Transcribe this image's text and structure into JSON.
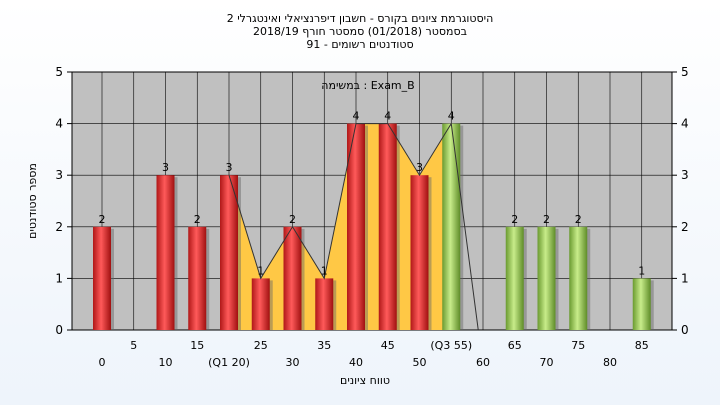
{
  "chart_data": {
    "type": "bar",
    "title_lines": [
      "היסטוגרמת ציונים בקורס - חשבון דיפרנציאלי ואינטגרלי 2",
      "בסמסטר  (01/2018)  סמסטר חורף  2018/19",
      "סטודנטים רשומים - 91"
    ],
    "annotation": "במשימה : Exam_B",
    "xlabel": "טווח ציונים",
    "ylabel": "מספר סטודנטים",
    "ylim": [
      0,
      5
    ],
    "yticks": [
      0,
      1,
      2,
      3,
      4,
      5
    ],
    "grid": true,
    "x_tick_labels": [
      {
        "x": 0,
        "label": "0",
        "row": 0
      },
      {
        "x": 5,
        "label": "5",
        "row": 1
      },
      {
        "x": 10,
        "label": "10",
        "row": 0
      },
      {
        "x": 15,
        "label": "15",
        "row": 1
      },
      {
        "x": 20,
        "label": "(Q1 20)",
        "row": 0
      },
      {
        "x": 25,
        "label": "25",
        "row": 1
      },
      {
        "x": 30,
        "label": "30",
        "row": 0
      },
      {
        "x": 35,
        "label": "35",
        "row": 1
      },
      {
        "x": 40,
        "label": "40",
        "row": 0
      },
      {
        "x": 45,
        "label": "45",
        "row": 1
      },
      {
        "x": 50,
        "label": "50",
        "row": 0
      },
      {
        "x": 55,
        "label": "(Q3 55)",
        "row": 1
      },
      {
        "x": 60,
        "label": "60",
        "row": 0
      },
      {
        "x": 65,
        "label": "65",
        "row": 1
      },
      {
        "x": 70,
        "label": "70",
        "row": 0
      },
      {
        "x": 75,
        "label": "75",
        "row": 1
      },
      {
        "x": 80,
        "label": "80",
        "row": 0
      },
      {
        "x": 85,
        "label": "85",
        "row": 1
      }
    ],
    "bars": [
      {
        "x": 0,
        "value": 2,
        "group": "fail"
      },
      {
        "x": 5,
        "value": 0,
        "group": "fail"
      },
      {
        "x": 10,
        "value": 3,
        "group": "fail"
      },
      {
        "x": 15,
        "value": 2,
        "group": "fail"
      },
      {
        "x": 20,
        "value": 3,
        "group": "fail"
      },
      {
        "x": 25,
        "value": 1,
        "group": "fail"
      },
      {
        "x": 30,
        "value": 2,
        "group": "fail"
      },
      {
        "x": 35,
        "value": 1,
        "group": "fail"
      },
      {
        "x": 40,
        "value": 4,
        "group": "fail"
      },
      {
        "x": 45,
        "value": 4,
        "group": "fail"
      },
      {
        "x": 50,
        "value": 3,
        "group": "fail"
      },
      {
        "x": 55,
        "value": 4,
        "group": "pass"
      },
      {
        "x": 60,
        "value": 0,
        "group": "pass"
      },
      {
        "x": 65,
        "value": 2,
        "group": "pass"
      },
      {
        "x": 70,
        "value": 2,
        "group": "pass"
      },
      {
        "x": 75,
        "value": 2,
        "group": "pass"
      },
      {
        "x": 80,
        "value": 0,
        "group": "pass"
      },
      {
        "x": 85,
        "value": 1,
        "group": "pass"
      }
    ],
    "interquartile_area": [
      {
        "x": 20,
        "y": 3
      },
      {
        "x": 25,
        "y": 1
      },
      {
        "x": 30,
        "y": 2
      },
      {
        "x": 35,
        "y": 1
      },
      {
        "x": 40,
        "y": 4
      },
      {
        "x": 45,
        "y": 4
      },
      {
        "x": 50,
        "y": 3
      },
      {
        "x": 55,
        "y": 4
      }
    ],
    "colors": {
      "fail": "#e03030",
      "pass": "#8cc04a",
      "area": "#ffc845",
      "plot_bg": "#c0c0c0"
    }
  }
}
